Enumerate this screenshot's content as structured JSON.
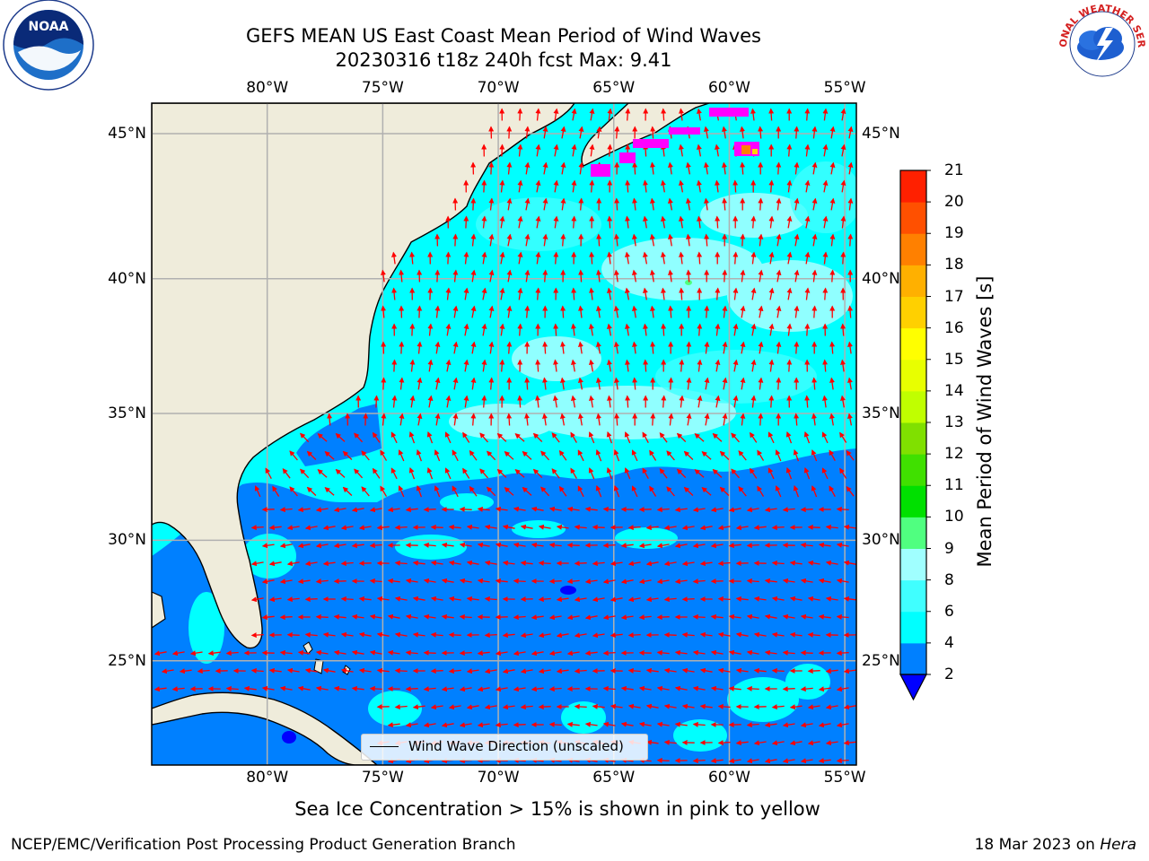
{
  "title": {
    "line1": "GEFS MEAN US East Coast Mean Period of Wind Waves",
    "line2": "20230316 t18z 240h fcst   Max: 9.41"
  },
  "x_ticks": [
    "80°W",
    "75°W",
    "70°W",
    "65°W",
    "60°W",
    "55°W"
  ],
  "y_ticks": [
    "45°N",
    "40°N",
    "35°N",
    "30°N",
    "25°N"
  ],
  "map": {
    "lon_range": [
      -85,
      -54.5
    ],
    "lat_range": [
      20.5,
      46
    ],
    "land_color": "#efecdb",
    "ocean_color": "#00ffff",
    "low_period_color": "#0080ff",
    "arrow_color": "#ff0000",
    "grid_color": "#b0b0b0"
  },
  "legend": {
    "label": "Wind Wave Direction (unscaled)"
  },
  "colorbar": {
    "label": "Mean Period of Wind Waves [s]",
    "levels": [
      2,
      4,
      6,
      8,
      9,
      10,
      11,
      12,
      13,
      14,
      15,
      16,
      17,
      18,
      19,
      20,
      21
    ],
    "tick_labels": [
      "2",
      "4",
      "6",
      "8",
      "9",
      "10",
      "11",
      "12",
      "13",
      "14",
      "15",
      "16",
      "17",
      "18",
      "19",
      "20",
      "21"
    ],
    "colors": [
      "#0080ff",
      "#00ffff",
      "#40ffff",
      "#a0ffff",
      "#50ff80",
      "#00e000",
      "#40e000",
      "#80e000",
      "#c0ff00",
      "#e8ff00",
      "#ffff00",
      "#ffd000",
      "#ffb000",
      "#ff8000",
      "#ff5000",
      "#ff2000"
    ],
    "extend_color": "#0000ff"
  },
  "subtitle": "Sea Ice Concentration > 15% is shown in pink to yellow",
  "footer": {
    "left": "NCEP/EMC/Verification Post Processing Product Generation Branch",
    "right_date": "18 Mar 2023 on",
    "right_machine": "Hera"
  },
  "logos": {
    "noaa": "NOAA",
    "nws": "NATIONAL WEATHER SERVICE"
  }
}
